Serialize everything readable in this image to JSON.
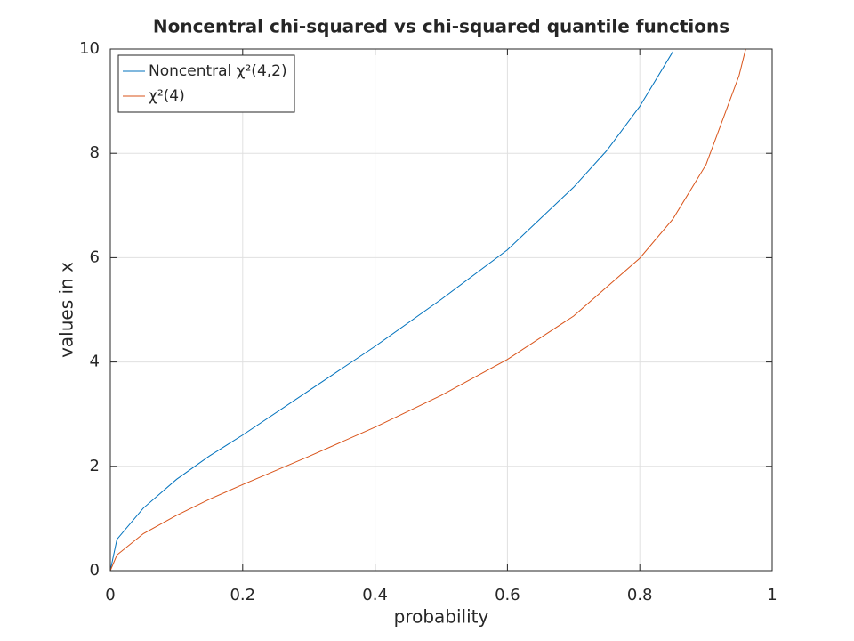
{
  "chart_data": {
    "type": "line",
    "title": "Noncentral chi-squared vs chi-squared quantile functions",
    "x_label": "probability",
    "y_label": "values in x",
    "xlim": [
      0,
      1
    ],
    "ylim": [
      0,
      10
    ],
    "xticks": [
      0,
      0.2,
      0.4,
      0.6,
      0.8,
      1
    ],
    "yticks": [
      0,
      2,
      4,
      6,
      8,
      10
    ],
    "grid": true,
    "legend": "upper left",
    "series": [
      {
        "name": "Noncentral χ²(4,2)",
        "color": "#0072bd",
        "x": [
          0,
          0.01,
          0.05,
          0.1,
          0.15,
          0.2,
          0.3,
          0.4,
          0.5,
          0.6,
          0.7,
          0.75,
          0.8,
          0.85
        ],
        "values": [
          0,
          0.6,
          1.2,
          1.75,
          2.2,
          2.6,
          3.45,
          4.3,
          5.2,
          6.15,
          7.35,
          8.05,
          8.9,
          9.95
        ]
      },
      {
        "name": "χ²(4)",
        "color": "#d95319",
        "x": [
          0,
          0.01,
          0.05,
          0.1,
          0.15,
          0.2,
          0.3,
          0.4,
          0.5,
          0.6,
          0.7,
          0.8,
          0.85,
          0.9,
          0.95,
          0.96
        ],
        "values": [
          0,
          0.3,
          0.71,
          1.06,
          1.37,
          1.65,
          2.19,
          2.75,
          3.36,
          4.05,
          4.88,
          5.99,
          6.74,
          7.78,
          9.49,
          10
        ]
      }
    ]
  }
}
